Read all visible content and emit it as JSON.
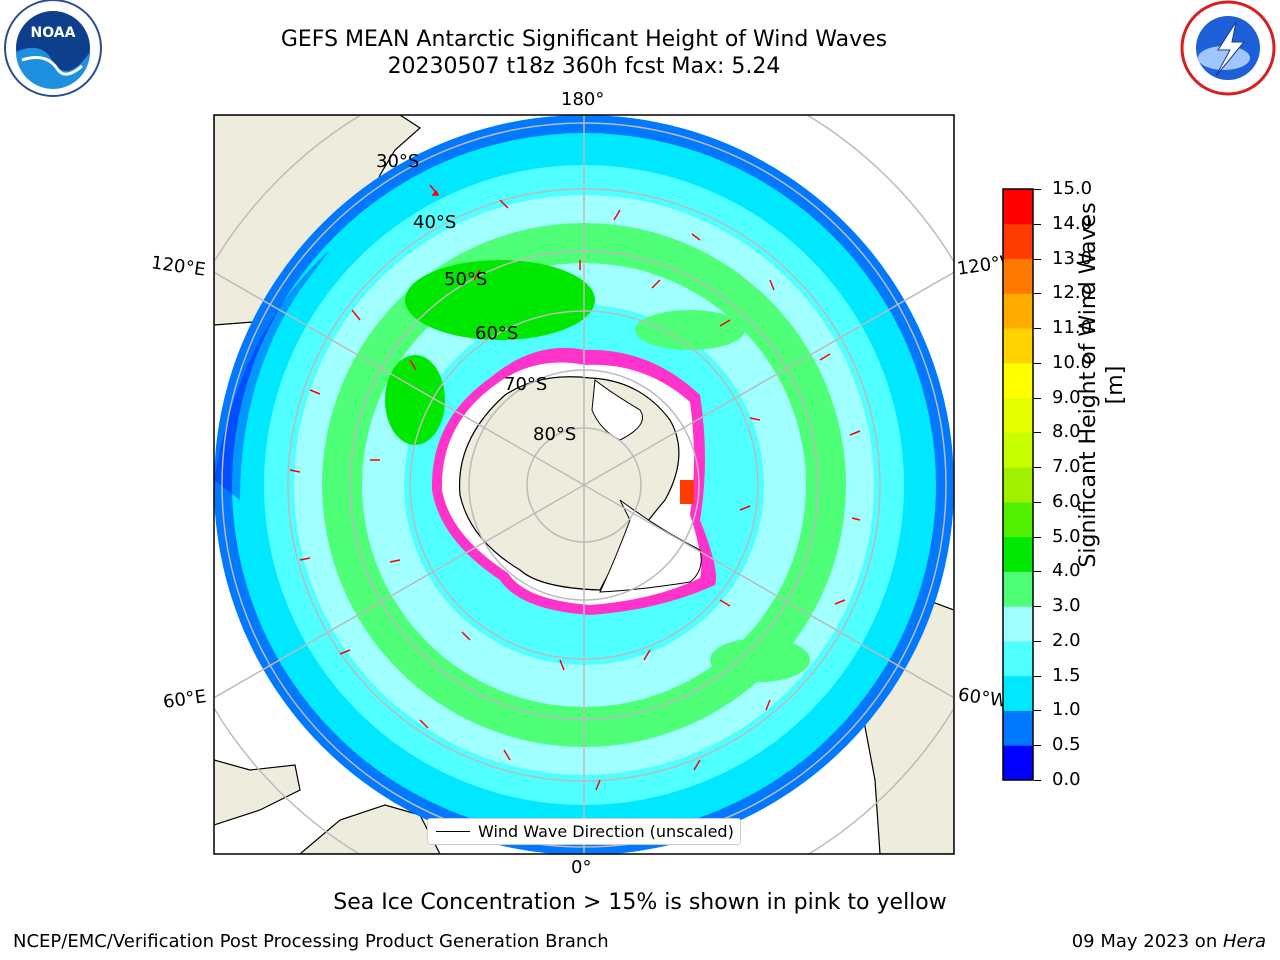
{
  "title": {
    "line1": "GEFS MEAN Antarctic Significant Height of Wind Waves",
    "line2": "20230507 t18z 360h fcst   Max: 5.24"
  },
  "logos": {
    "noaa": {
      "text": "NOAA",
      "icon": "noaa-logo-icon"
    },
    "nws": {
      "icon": "nws-logo-icon"
    }
  },
  "map": {
    "projection": "south-polar-stereographic",
    "longitude_labels": {
      "top": "180°",
      "bottom": "0°",
      "upper_left": "120°E",
      "upper_right": "120°W",
      "lower_left": "60°E",
      "lower_right": "60°W"
    },
    "latitude_labels": [
      "30°S",
      "40°S",
      "50°S",
      "60°S",
      "70°S",
      "80°S"
    ],
    "legend": "Wind Wave Direction (unscaled)",
    "colors": {
      "land": "#eeecdc",
      "ocean_low": "#00ffff",
      "ice": "#ff33cc",
      "arrow": "#ff0000",
      "grid": "#bbbbbb"
    }
  },
  "colorbar": {
    "label": "Significant Height of Wind Waves [m]",
    "ticks": [
      "0.0",
      "0.5",
      "1.0",
      "1.5",
      "2.0",
      "3.0",
      "4.0",
      "5.0",
      "6.0",
      "7.0",
      "8.0",
      "9.0",
      "10.0",
      "11.0",
      "12.0",
      "13.0",
      "14.0",
      "15.0"
    ],
    "colors": [
      "#0000ff",
      "#0078ff",
      "#00e8ff",
      "#50ffff",
      "#a0ffff",
      "#50ff78",
      "#00e800",
      "#50f000",
      "#a0f000",
      "#c8ff00",
      "#e6ff00",
      "#ffff00",
      "#ffd200",
      "#ffaa00",
      "#ff7800",
      "#ff3c00",
      "#ff0000"
    ]
  },
  "footer": {
    "sea_ice_note": "Sea Ice Concentration > 15% is shown in pink to yellow",
    "left": "NCEP/EMC/Verification Post Processing Product Generation Branch",
    "right_date": "09 May 2023 on ",
    "right_host": "Hera"
  }
}
